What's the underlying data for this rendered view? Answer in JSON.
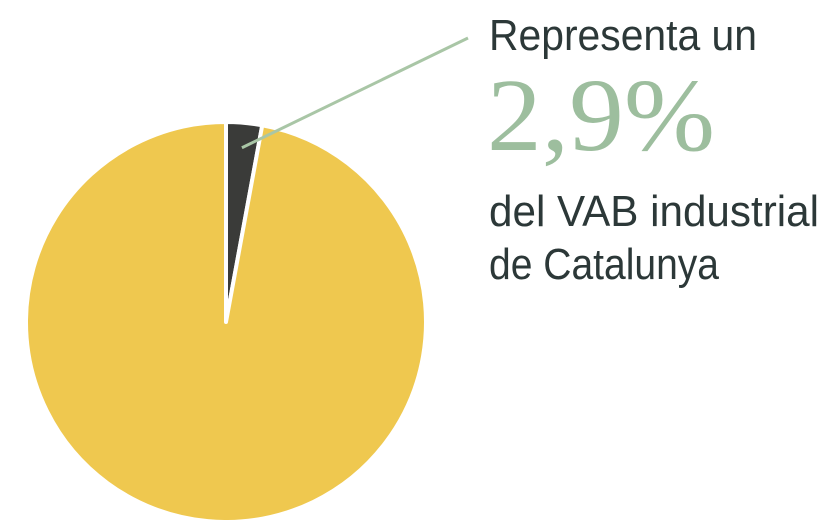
{
  "chart_data": {
    "type": "pie",
    "categories": [
      null,
      null
    ],
    "values": [
      2.9,
      97.1
    ],
    "value_labels": [
      "2,9%",
      null
    ],
    "colors": [
      "#3a3b39",
      "#efc84f"
    ],
    "annotations": [
      "Representa un",
      "del VAB industrial",
      "de Catalunya"
    ]
  }
}
